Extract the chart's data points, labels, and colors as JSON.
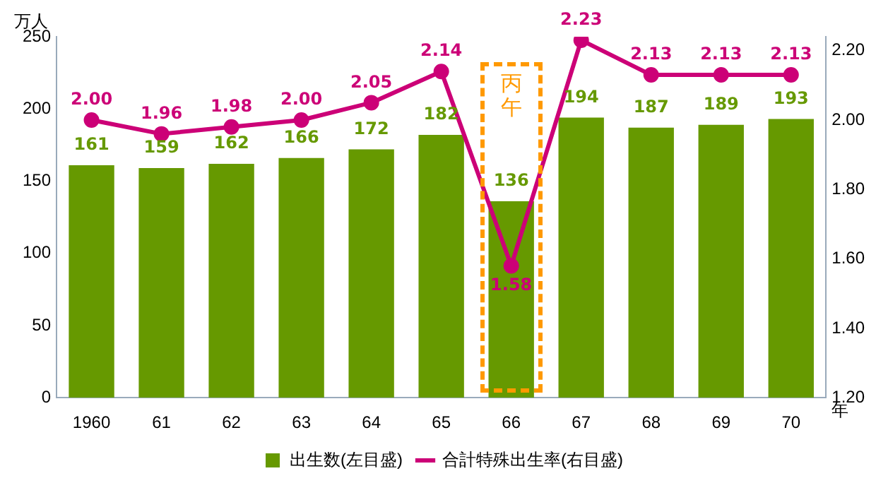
{
  "chart_data": {
    "type": "bar",
    "ylabel": "万人",
    "xlabel": "年",
    "categories": [
      "1960",
      "61",
      "62",
      "63",
      "64",
      "65",
      "66",
      "67",
      "68",
      "69",
      "70"
    ],
    "series": [
      {
        "name": "出生数(左目盛)",
        "color": "#669900",
        "values": [
          161,
          159,
          162,
          166,
          172,
          182,
          136,
          194,
          187,
          189,
          193
        ],
        "value_labels": [
          "161",
          "159",
          "162",
          "166",
          "172",
          "182",
          "136",
          "194",
          "187",
          "189",
          "193"
        ]
      },
      {
        "name": "合計特殊出生率(右目盛)",
        "type": "line",
        "axis": "y2",
        "color": "#cc0077",
        "marker": "circle",
        "values": [
          2.0,
          1.96,
          1.98,
          2.0,
          2.05,
          2.14,
          1.58,
          2.23,
          2.13,
          2.13,
          2.13
        ],
        "value_labels": [
          "2.00",
          "1.96",
          "1.98",
          "2.00",
          "2.05",
          "2.14",
          "1.58",
          "2.23",
          "2.13",
          "2.13",
          "2.13"
        ]
      }
    ],
    "ylim": [
      0,
      250
    ],
    "yticks": [
      0,
      50,
      100,
      150,
      200,
      250
    ],
    "y2lim": [
      1.2,
      2.24
    ],
    "y2ticks": [
      {
        "value": 1.2,
        "label": "1.20"
      },
      {
        "value": 1.4,
        "label": "1.40"
      },
      {
        "value": 1.6,
        "label": "1.60"
      },
      {
        "value": 1.8,
        "label": "1.80"
      },
      {
        "value": 2.0,
        "label": "2.00"
      },
      {
        "value": 2.2,
        "label": "2.20"
      }
    ],
    "annotations": [
      "丙午"
    ],
    "grid": false,
    "legend": "bottom"
  }
}
